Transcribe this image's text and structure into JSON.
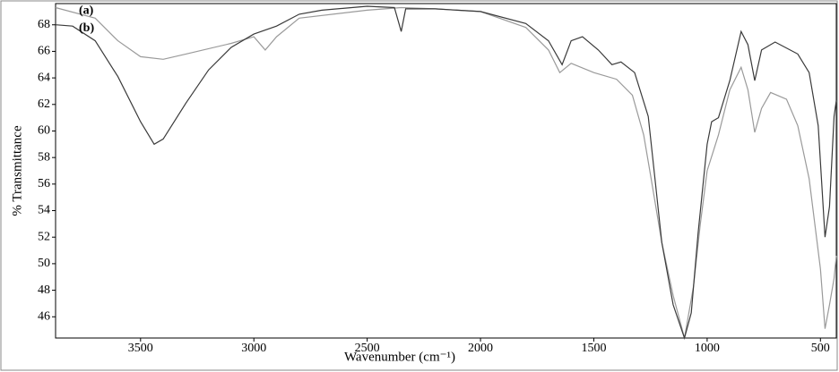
{
  "chart_data": {
    "type": "line",
    "x_label": "Wavenumber (cm⁻¹)",
    "y_label": "% Transmittance",
    "xlim": [
      3875,
      430
    ],
    "ylim": [
      44.4,
      69.6
    ],
    "xticks": [
      3500,
      3000,
      2500,
      2000,
      1500,
      1000,
      500
    ],
    "yticks": [
      46,
      48,
      50,
      52,
      54,
      56,
      58,
      60,
      62,
      64,
      66,
      68
    ],
    "grid": false,
    "series": [
      {
        "name": "(a)",
        "color": "#9a9a9a",
        "x": [
          3875,
          3700,
          3600,
          3500,
          3400,
          3300,
          3100,
          3000,
          2950,
          2900,
          2800,
          2500,
          2350,
          2200,
          2000,
          1800,
          1700,
          1650,
          1600,
          1500,
          1400,
          1330,
          1280,
          1250,
          1200,
          1150,
          1100,
          1060,
          1030,
          1000,
          950,
          900,
          850,
          820,
          790,
          760,
          720,
          650,
          600,
          550,
          500,
          480,
          460,
          440,
          430
        ],
        "values": [
          69.3,
          68.5,
          66.8,
          65.6,
          65.4,
          65.8,
          66.6,
          67.1,
          66.1,
          67.1,
          68.5,
          69.1,
          69.3,
          69.2,
          69.0,
          67.8,
          66.1,
          64.4,
          65.1,
          64.4,
          63.9,
          62.7,
          59.7,
          56.7,
          51.6,
          47.6,
          44.4,
          48.3,
          53.0,
          57.0,
          59.7,
          63.1,
          64.8,
          63.1,
          59.9,
          61.7,
          62.9,
          62.4,
          60.4,
          56.4,
          49.6,
          45.1,
          46.9,
          48.9,
          50.6
        ]
      },
      {
        "name": "(b)",
        "color": "#3a3a3a",
        "x": [
          3875,
          3800,
          3700,
          3600,
          3500,
          3440,
          3400,
          3300,
          3200,
          3100,
          3000,
          2900,
          2800,
          2700,
          2500,
          2380,
          2350,
          2330,
          2200,
          2000,
          1800,
          1700,
          1640,
          1600,
          1550,
          1480,
          1420,
          1380,
          1320,
          1260,
          1230,
          1200,
          1150,
          1100,
          1070,
          1040,
          1000,
          980,
          950,
          900,
          850,
          820,
          790,
          760,
          700,
          600,
          550,
          510,
          480,
          460,
          440,
          430
        ],
        "values": [
          68.0,
          67.9,
          66.8,
          64.1,
          60.7,
          59.0,
          59.4,
          62.1,
          64.6,
          66.3,
          67.3,
          67.9,
          68.8,
          69.1,
          69.4,
          69.3,
          67.5,
          69.2,
          69.2,
          69.0,
          68.1,
          66.8,
          65.0,
          66.8,
          67.1,
          66.1,
          65.0,
          65.2,
          64.4,
          61.1,
          56.4,
          51.6,
          46.9,
          44.4,
          46.3,
          52.3,
          59.0,
          60.7,
          61.0,
          63.8,
          67.5,
          66.5,
          63.8,
          66.1,
          66.7,
          65.8,
          64.4,
          60.4,
          52.0,
          54.3,
          61.1,
          62.3
        ]
      }
    ]
  }
}
